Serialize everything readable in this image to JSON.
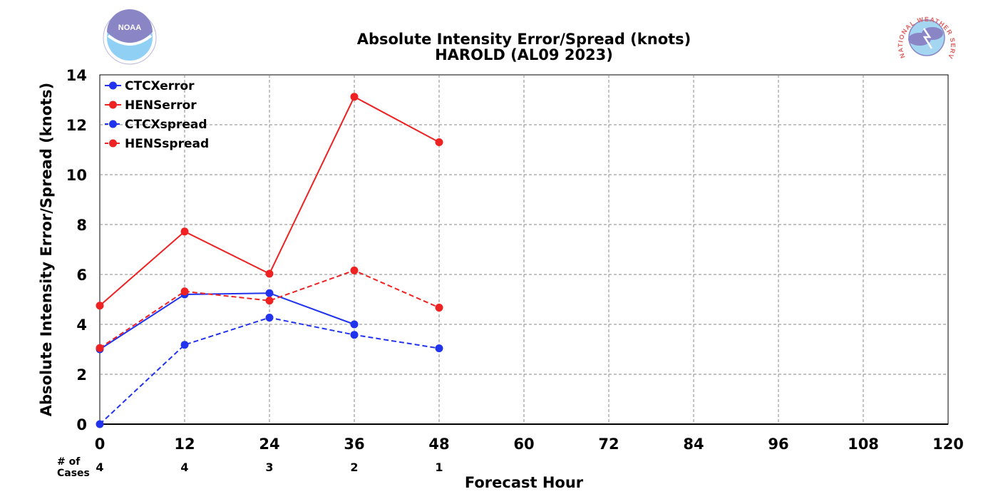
{
  "chart_data": {
    "type": "line",
    "title": "Absolute Intensity Error/Spread (knots)",
    "subtitle": "HAROLD (AL09 2023)",
    "xlabel": "Forecast Hour",
    "ylabel": "Absolute Intensity Error/Spread (knots)",
    "xlim": [
      0,
      120
    ],
    "ylim": [
      0,
      14
    ],
    "x_ticks": [
      0,
      12,
      24,
      36,
      48,
      60,
      72,
      84,
      96,
      108,
      120
    ],
    "y_ticks": [
      0,
      2,
      4,
      6,
      8,
      10,
      12,
      14
    ],
    "grid": true,
    "legend_position": "top-left",
    "cases_label_line1": "# of",
    "cases_label_line2": "Cases",
    "cases": [
      {
        "x": 0,
        "n": "4"
      },
      {
        "x": 12,
        "n": "4"
      },
      {
        "x": 24,
        "n": "3"
      },
      {
        "x": 36,
        "n": "2"
      },
      {
        "x": 48,
        "n": "1"
      }
    ],
    "series": [
      {
        "name": "CTCXerror",
        "color": "#2233ee",
        "dash": "solid",
        "x": [
          0,
          12,
          24,
          36
        ],
        "values": [
          3.0,
          5.2,
          5.25,
          4.0
        ]
      },
      {
        "name": "HENSerror",
        "color": "#ee2222",
        "dash": "solid",
        "x": [
          0,
          12,
          24,
          36,
          48
        ],
        "values": [
          4.75,
          7.72,
          6.03,
          13.12,
          11.3
        ]
      },
      {
        "name": "CTCXspread",
        "color": "#2233ee",
        "dash": "dashed",
        "x": [
          0,
          12,
          24,
          36,
          48
        ],
        "values": [
          0.0,
          3.18,
          4.27,
          3.58,
          3.04
        ]
      },
      {
        "name": "HENSspread",
        "color": "#ee2222",
        "dash": "dashed",
        "x": [
          0,
          12,
          24,
          36,
          48
        ],
        "values": [
          3.05,
          5.32,
          4.95,
          6.16,
          4.67
        ]
      }
    ]
  },
  "logos": {
    "left": {
      "icon": "noaa-logo",
      "text": "NOAA"
    },
    "right": {
      "icon": "nws-logo",
      "text": "NATIONAL WEATHER SERVICE"
    }
  }
}
